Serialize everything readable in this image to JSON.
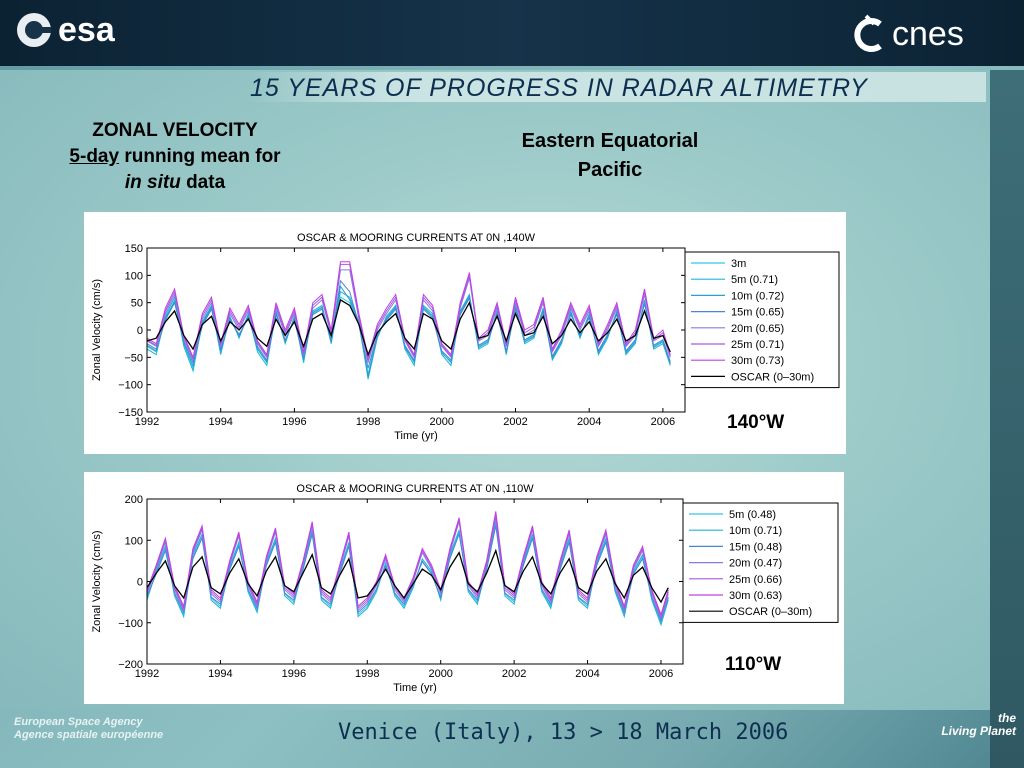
{
  "header": {
    "left_logo_text": "esa",
    "right_logo_text": "cnes",
    "banner": "15 YEARS OF PROGRESS IN RADAR ALTIMETRY"
  },
  "slide": {
    "title_line1": "ZONAL VELOCITY",
    "title_line2_underlined": "5-day",
    "title_line2_rest": " running mean for",
    "title_line3_italic": "in situ",
    "title_line3_rest": " data",
    "subtitle_line1": "Eastern Equatorial",
    "subtitle_line2": "Pacific"
  },
  "panels": {
    "top_label": "140°W",
    "bottom_label": "110°W"
  },
  "footer": {
    "left_line1": "European Space Agency",
    "left_line2": "Agence spatiale européenne",
    "center": "Venice (Italy), 13 > 18 March 2006",
    "right_line1": "the",
    "right_line2": "Living Planet"
  },
  "chart_data": [
    {
      "type": "line",
      "title": "OSCAR & MOORING CURRENTS AT 0N ,140W",
      "xlabel": "Time (yr)",
      "ylabel": "Zonal Velocity (cm/s)",
      "xlim": [
        1992,
        2006.6
      ],
      "ylim": [
        -150,
        150
      ],
      "xticks": [
        1992,
        1994,
        1996,
        1998,
        2000,
        2002,
        2004,
        2006
      ],
      "yticks": [
        -150,
        -100,
        -50,
        0,
        50,
        100,
        150
      ],
      "legend_position": "right",
      "grid": false,
      "x": [
        1992.0,
        1992.25,
        1992.5,
        1992.75,
        1993.0,
        1993.25,
        1993.5,
        1993.75,
        1994.0,
        1994.25,
        1994.5,
        1994.75,
        1995.0,
        1995.25,
        1995.5,
        1995.75,
        1996.0,
        1996.25,
        1996.5,
        1996.75,
        1997.0,
        1997.25,
        1997.5,
        1997.75,
        1998.0,
        1998.25,
        1998.5,
        1998.75,
        1999.0,
        1999.25,
        1999.5,
        1999.75,
        2000.0,
        2000.25,
        2000.5,
        2000.75,
        2001.0,
        2001.25,
        2001.5,
        2001.75,
        2002.0,
        2002.25,
        2002.5,
        2002.75,
        2003.0,
        2003.25,
        2003.5,
        2003.75,
        2004.0,
        2004.25,
        2004.5,
        2004.75,
        2005.0,
        2005.25,
        2005.5,
        2005.75,
        2006.0,
        2006.2
      ],
      "series": [
        {
          "name": "3m",
          "color": "#33c8e6",
          "values": [
            -30,
            -40,
            20,
            55,
            -25,
            -70,
            10,
            40,
            -40,
            20,
            -10,
            25,
            -35,
            -60,
            30,
            -20,
            20,
            -55,
            30,
            40,
            -20,
            60,
            50,
            10,
            -80,
            -10,
            20,
            40,
            -30,
            -60,
            40,
            25,
            -40,
            -60,
            30,
            60,
            -30,
            -20,
            30,
            -40,
            40,
            -20,
            -10,
            35,
            -50,
            -20,
            30,
            -10,
            25,
            -40,
            -10,
            30,
            -40,
            -20,
            50,
            -30,
            -20,
            -60
          ]
        },
        {
          "name": "5m (0.71)",
          "color": "#20b4d8",
          "values": [
            -35,
            -45,
            25,
            60,
            -30,
            -75,
            15,
            45,
            -45,
            25,
            -15,
            30,
            -40,
            -65,
            35,
            -25,
            25,
            -60,
            35,
            45,
            -25,
            70,
            60,
            15,
            -90,
            -15,
            25,
            45,
            -35,
            -65,
            45,
            30,
            -45,
            -65,
            35,
            65,
            -35,
            -25,
            35,
            -45,
            45,
            -25,
            -15,
            40,
            -55,
            -25,
            35,
            -15,
            30,
            -45,
            -15,
            35,
            -45,
            -25,
            55,
            -35,
            -25,
            -65
          ]
        },
        {
          "name": "10m (0.72)",
          "color": "#2aa0d0",
          "values": [
            -28,
            -38,
            22,
            52,
            -24,
            -66,
            12,
            42,
            -38,
            22,
            -12,
            26,
            -34,
            -58,
            32,
            -22,
            22,
            -54,
            32,
            42,
            -22,
            80,
            55,
            12,
            -85,
            -12,
            22,
            42,
            -32,
            -58,
            42,
            26,
            -42,
            -58,
            32,
            62,
            -32,
            -22,
            32,
            -42,
            42,
            -22,
            -12,
            36,
            -52,
            -22,
            32,
            -12,
            26,
            -42,
            -12,
            32,
            -42,
            -22,
            52,
            -32,
            -22,
            -62
          ]
        },
        {
          "name": "15m (0.65)",
          "color": "#4a86d6",
          "values": [
            -25,
            -35,
            18,
            50,
            -20,
            -60,
            8,
            38,
            -35,
            18,
            -8,
            22,
            -30,
            -55,
            28,
            -18,
            18,
            -50,
            28,
            38,
            -18,
            90,
            70,
            10,
            -70,
            -8,
            18,
            38,
            -28,
            -55,
            38,
            22,
            -38,
            -55,
            28,
            58,
            -28,
            -18,
            28,
            -38,
            38,
            -18,
            -8,
            32,
            -48,
            -18,
            28,
            -8,
            22,
            -38,
            -8,
            28,
            -38,
            -18,
            48,
            -28,
            -18,
            -58
          ]
        },
        {
          "name": "20m (0.65)",
          "color": "#8a7adc",
          "values": [
            -20,
            -30,
            30,
            65,
            -15,
            -55,
            20,
            50,
            -30,
            30,
            0,
            35,
            -25,
            -50,
            40,
            -10,
            30,
            -45,
            40,
            55,
            -10,
            110,
            110,
            20,
            -60,
            0,
            30,
            55,
            -20,
            -50,
            55,
            35,
            -30,
            -50,
            40,
            95,
            -20,
            -10,
            40,
            -30,
            50,
            -10,
            0,
            50,
            -40,
            -10,
            40,
            0,
            35,
            -30,
            0,
            40,
            -30,
            -10,
            65,
            -20,
            -10,
            -50
          ]
        },
        {
          "name": "25m (0.71)",
          "color": "#a85ae0",
          "values": [
            -18,
            -28,
            35,
            70,
            -12,
            -52,
            25,
            55,
            -28,
            35,
            5,
            40,
            -22,
            -48,
            45,
            -5,
            35,
            -42,
            45,
            60,
            -5,
            120,
            120,
            25,
            -55,
            5,
            35,
            60,
            -18,
            -48,
            60,
            40,
            -28,
            -48,
            45,
            100,
            -18,
            -5,
            45,
            -28,
            55,
            -5,
            5,
            55,
            -38,
            -5,
            45,
            5,
            40,
            -28,
            5,
            45,
            -28,
            -5,
            70,
            -18,
            -5,
            -48
          ]
        },
        {
          "name": "30m (0.73)",
          "color": "#c040e6",
          "values": [
            -15,
            -25,
            40,
            75,
            -10,
            -50,
            30,
            60,
            -25,
            40,
            10,
            45,
            -20,
            -45,
            50,
            0,
            40,
            -40,
            50,
            65,
            0,
            125,
            125,
            30,
            -50,
            10,
            40,
            65,
            -15,
            -45,
            65,
            45,
            -25,
            -45,
            50,
            105,
            -15,
            0,
            50,
            -25,
            60,
            0,
            10,
            60,
            -35,
            0,
            50,
            10,
            45,
            -25,
            10,
            50,
            -25,
            0,
            75,
            -15,
            0,
            -45
          ]
        },
        {
          "name": "OSCAR (0–30m)",
          "color": "#000000",
          "values": [
            -20,
            -15,
            15,
            35,
            -10,
            -35,
            10,
            25,
            -20,
            15,
            0,
            20,
            -15,
            -30,
            20,
            -10,
            15,
            -30,
            20,
            30,
            -10,
            55,
            45,
            10,
            -45,
            -5,
            15,
            30,
            -15,
            -35,
            30,
            20,
            -20,
            -35,
            20,
            50,
            -15,
            -10,
            25,
            -20,
            30,
            -10,
            -5,
            25,
            -25,
            -10,
            20,
            -5,
            15,
            -20,
            -5,
            20,
            -20,
            -10,
            35,
            -15,
            -10,
            -40
          ]
        }
      ]
    },
    {
      "type": "line",
      "title": "OSCAR & MOORING CURRENTS AT 0N ,110W",
      "xlabel": "Time (yr)",
      "ylabel": "Zonal Velocity (cm/s)",
      "xlim": [
        1992,
        2006.6
      ],
      "ylim": [
        -200,
        200
      ],
      "xticks": [
        1992,
        1994,
        1996,
        1998,
        2000,
        2002,
        2004,
        2006
      ],
      "yticks": [
        -200,
        -100,
        0,
        100,
        200
      ],
      "legend_position": "right",
      "grid": false,
      "x": [
        1992.0,
        1992.25,
        1992.5,
        1992.75,
        1993.0,
        1993.25,
        1993.5,
        1993.75,
        1994.0,
        1994.25,
        1994.5,
        1994.75,
        1995.0,
        1995.25,
        1995.5,
        1995.75,
        1996.0,
        1996.25,
        1996.5,
        1996.75,
        1997.0,
        1997.25,
        1997.5,
        1997.75,
        1998.0,
        1998.25,
        1998.5,
        1998.75,
        1999.0,
        1999.25,
        1999.5,
        1999.75,
        2000.0,
        2000.25,
        2000.5,
        2000.75,
        2001.0,
        2001.25,
        2001.5,
        2001.75,
        2002.0,
        2002.25,
        2002.5,
        2002.75,
        2003.0,
        2003.25,
        2003.5,
        2003.75,
        2004.0,
        2004.25,
        2004.5,
        2004.75,
        2005.0,
        2005.25,
        2005.5,
        2005.75,
        2006.0,
        2006.2
      ],
      "series": [
        {
          "name": "5m (0.48)",
          "color": "#33c8e6",
          "values": [
            -40,
            20,
            80,
            -30,
            -80,
            60,
            110,
            -40,
            -60,
            30,
            90,
            -20,
            -70,
            40,
            100,
            -30,
            -50,
            30,
            120,
            -40,
            -60,
            20,
            90,
            -80,
            -60,
            -20,
            40,
            -30,
            -60,
            -10,
            50,
            20,
            -40,
            60,
            120,
            -20,
            -50,
            30,
            140,
            -30,
            -50,
            40,
            110,
            -20,
            -60,
            30,
            100,
            -40,
            -60,
            40,
            100,
            -20,
            -80,
            20,
            60,
            -40,
            -100,
            -40
          ]
        },
        {
          "name": "10m (0.71)",
          "color": "#20b4d8",
          "values": [
            -45,
            25,
            85,
            -35,
            -85,
            65,
            115,
            -45,
            -65,
            35,
            95,
            -25,
            -75,
            45,
            105,
            -35,
            -55,
            35,
            125,
            -45,
            -65,
            25,
            95,
            -85,
            -65,
            -25,
            45,
            -35,
            -65,
            -15,
            55,
            25,
            -45,
            65,
            125,
            -25,
            -55,
            35,
            145,
            -35,
            -55,
            45,
            115,
            -25,
            -65,
            35,
            105,
            -45,
            -65,
            45,
            105,
            -25,
            -85,
            25,
            65,
            -45,
            -105,
            -45
          ]
        },
        {
          "name": "15m (0.48)",
          "color": "#4a86d6",
          "values": [
            -35,
            18,
            75,
            -28,
            -75,
            55,
            105,
            -38,
            -55,
            28,
            85,
            -18,
            -65,
            38,
            95,
            -28,
            -45,
            28,
            115,
            -38,
            -55,
            18,
            85,
            -75,
            -55,
            -18,
            38,
            -28,
            -55,
            -8,
            48,
            18,
            -38,
            55,
            115,
            -18,
            -45,
            28,
            135,
            -28,
            -45,
            38,
            105,
            -18,
            -55,
            28,
            95,
            -38,
            -55,
            38,
            95,
            -18,
            -75,
            18,
            55,
            -38,
            -95,
            -38
          ]
        },
        {
          "name": "20m (0.47)",
          "color": "#8a7adc",
          "values": [
            -30,
            30,
            95,
            -20,
            -70,
            70,
            125,
            -30,
            -50,
            40,
            110,
            -10,
            -60,
            50,
            120,
            -20,
            -40,
            40,
            135,
            -30,
            -50,
            30,
            110,
            -70,
            -50,
            -10,
            55,
            -20,
            -50,
            0,
            70,
            30,
            -30,
            70,
            145,
            -10,
            -40,
            40,
            155,
            -20,
            -40,
            50,
            125,
            -10,
            -50,
            40,
            115,
            -30,
            -50,
            50,
            115,
            -10,
            -70,
            30,
            75,
            -30,
            -90,
            -30
          ]
        },
        {
          "name": "25m (0.66)",
          "color": "#a85ae0",
          "values": [
            -25,
            35,
            100,
            -15,
            -65,
            75,
            130,
            -25,
            -45,
            45,
            115,
            -5,
            -55,
            55,
            125,
            -15,
            -35,
            45,
            140,
            -25,
            -45,
            35,
            115,
            -65,
            -45,
            -5,
            60,
            -15,
            -45,
            5,
            75,
            35,
            -25,
            75,
            150,
            -5,
            -35,
            45,
            160,
            -15,
            -35,
            55,
            130,
            -5,
            -45,
            45,
            120,
            -25,
            -45,
            55,
            120,
            -5,
            -65,
            35,
            80,
            -25,
            -85,
            -25
          ]
        },
        {
          "name": "30m (0.63)",
          "color": "#c040e6",
          "values": [
            -20,
            40,
            105,
            -10,
            -60,
            80,
            135,
            -20,
            -40,
            50,
            120,
            0,
            -50,
            60,
            130,
            -10,
            -30,
            50,
            145,
            -20,
            -40,
            40,
            120,
            -60,
            -40,
            0,
            65,
            -10,
            -40,
            10,
            80,
            40,
            -20,
            80,
            155,
            0,
            -30,
            50,
            170,
            -10,
            -30,
            60,
            135,
            0,
            -40,
            50,
            125,
            -20,
            -40,
            60,
            125,
            0,
            -60,
            40,
            85,
            -20,
            -80,
            -20
          ]
        },
        {
          "name": "OSCAR (0–30m)",
          "color": "#000000",
          "values": [
            -15,
            20,
            50,
            -10,
            -40,
            35,
            60,
            -15,
            -30,
            20,
            55,
            -5,
            -35,
            25,
            60,
            -10,
            -25,
            20,
            65,
            -15,
            -30,
            15,
            55,
            -40,
            -35,
            -5,
            30,
            -10,
            -40,
            -5,
            30,
            15,
            -20,
            35,
            70,
            -5,
            -25,
            20,
            75,
            -10,
            -25,
            25,
            60,
            -5,
            -30,
            20,
            55,
            -15,
            -30,
            25,
            55,
            -5,
            -40,
            15,
            35,
            -15,
            -50,
            -15
          ]
        }
      ]
    }
  ]
}
